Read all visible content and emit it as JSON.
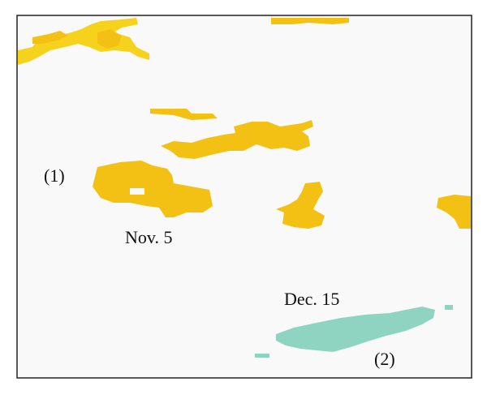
{
  "labels": [
    "(1)",
    "Nov. 5",
    "Dec. 15",
    "(2)"
  ]
}
